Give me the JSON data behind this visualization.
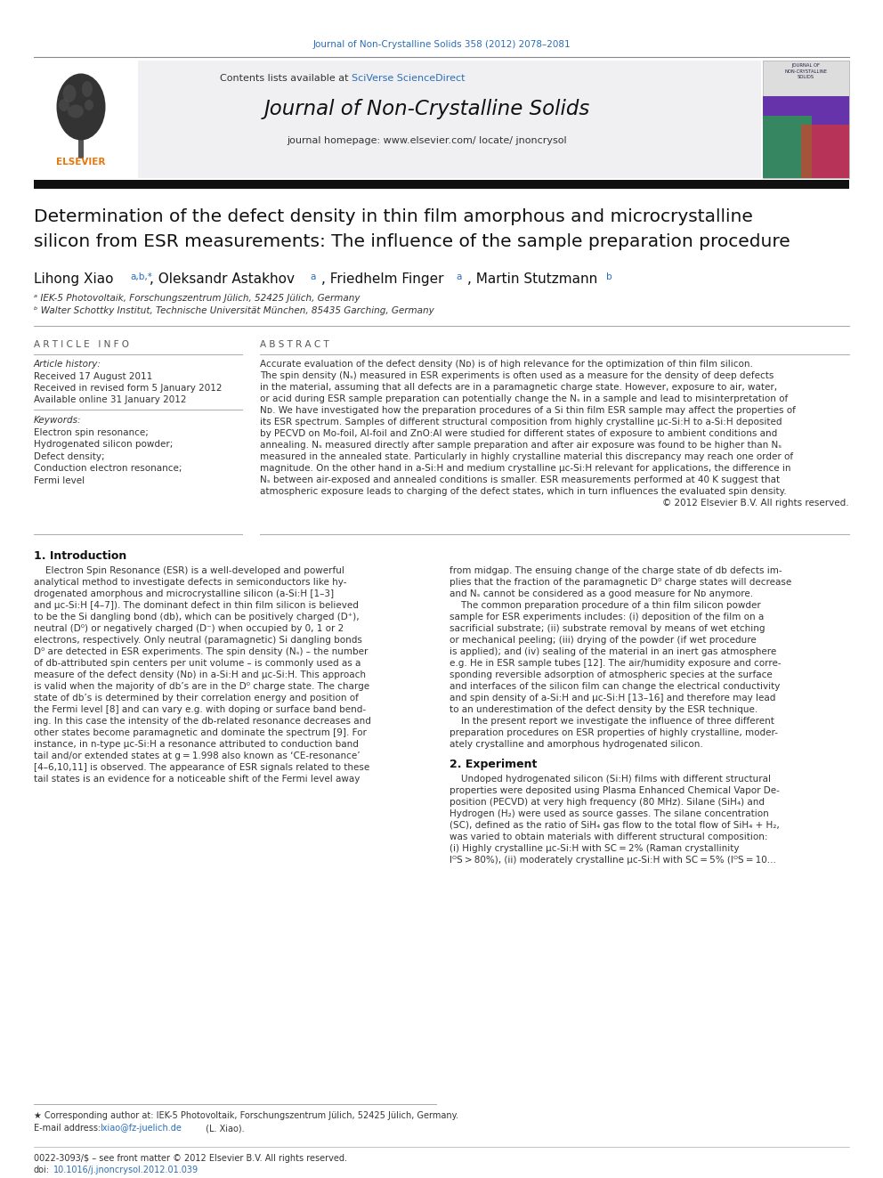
{
  "page_bg": "#ffffff",
  "top_journal_ref": "Journal of Non-Crystalline Solids 358 (2012) 2078–2081",
  "top_journal_color": "#2a6ebb",
  "journal_header_bg": "#f0f0f0",
  "journal_name": "Journal of Non-Crystalline Solids",
  "contents_text": "Contents lists available at ",
  "sciverse_text": "SciVerse ScienceDirect",
  "homepage_text": "journal homepage: www.elsevier.com/ locate/ jnoncrysol",
  "title_line1": "Determination of the defect density in thin film amorphous and microcrystalline",
  "title_line2": "silicon from ESR measurements: The influence of the sample preparation procedure",
  "affil1": "ᵃ IEK-5 Photovoltaik, Forschungszentrum Jülich, 52425 Jülich, Germany",
  "affil2": "ᵇ Walter Schottky Institut, Technische Universität München, 85435 Garching, Germany",
  "article_info_header": "A R T I C L E   I N F O",
  "article_history_header": "Article history:",
  "received1": "Received 17 August 2011",
  "received2": "Received in revised form 5 January 2012",
  "available": "Available online 31 January 2012",
  "keywords_header": "Keywords:",
  "keyword1": "Electron spin resonance;",
  "keyword2": "Hydrogenated silicon powder;",
  "keyword3": "Defect density;",
  "keyword4": "Conduction electron resonance;",
  "keyword5": "Fermi level",
  "abstract_header": "A B S T R A C T",
  "intro_header": "1. Introduction",
  "section2_header": "2. Experiment",
  "footnote_star": "★ Corresponding author at: IEK-5 Photovoltaik, Forschungszentrum Jülich, 52425 Jülich, Germany.",
  "footnote_email_prefix": "E-mail address: ",
  "footnote_email_link": "lxiao@fz-juelich.de",
  "footnote_email_suffix": " (L. Xiao).",
  "footer_issn": "0022-3093/$ – see front matter © 2012 Elsevier B.V. All rights reserved.",
  "footer_doi_prefix": "doi:",
  "footer_doi_link": "10.1016/j.jnoncrysol.2012.01.039",
  "link_color": "#2a6ebb",
  "abstract_lines": [
    "Accurate evaluation of the defect density (Nᴅ) is of high relevance for the optimization of thin film silicon.",
    "The spin density (Nₛ) measured in ESR experiments is often used as a measure for the density of deep defects",
    "in the material, assuming that all defects are in a paramagnetic charge state. However, exposure to air, water,",
    "or acid during ESR sample preparation can potentially change the Nₛ in a sample and lead to misinterpretation of",
    "Nᴅ. We have investigated how the preparation procedures of a Si thin film ESR sample may affect the properties of",
    "its ESR spectrum. Samples of different structural composition from highly crystalline μc-Si:H to a-Si:H deposited",
    "by PECVD on Mo-foil, Al-foil and ZnO:Al were studied for different states of exposure to ambient conditions and",
    "annealing. Nₛ measured directly after sample preparation and after air exposure was found to be higher than Nₛ",
    "measured in the annealed state. Particularly in highly crystalline material this discrepancy may reach one order of",
    "magnitude. On the other hand in a-Si:H and medium crystalline μc-Si:H relevant for applications, the difference in",
    "Nₛ between air-exposed and annealed conditions is smaller. ESR measurements performed at 40 K suggest that",
    "atmospheric exposure leads to charging of the defect states, which in turn influences the evaluated spin density.",
    "© 2012 Elsevier B.V. All rights reserved."
  ],
  "intro_col1_lines": [
    "    Electron Spin Resonance (ESR) is a well-developed and powerful",
    "analytical method to investigate defects in semiconductors like hy-",
    "drogenated amorphous and microcrystalline silicon (a-Si:H [1–3]",
    "and μc-Si:H [4–7]). The dominant defect in thin film silicon is believed",
    "to be the Si dangling bond (db), which can be positively charged (D⁺),",
    "neutral (D⁰) or negatively charged (D⁻) when occupied by 0, 1 or 2",
    "electrons, respectively. Only neutral (paramagnetic) Si dangling bonds",
    "D⁰ are detected in ESR experiments. The spin density (Nₛ) – the number",
    "of db-attributed spin centers per unit volume – is commonly used as a",
    "measure of the defect density (Nᴅ) in a-Si:H and μc-Si:H. This approach",
    "is valid when the majority of db’s are in the D⁰ charge state. The charge",
    "state of db’s is determined by their correlation energy and position of",
    "the Fermi level [8] and can vary e.g. with doping or surface band bend-",
    "ing. In this case the intensity of the db-related resonance decreases and",
    "other states become paramagnetic and dominate the spectrum [9]. For",
    "instance, in n-type μc-Si:H a resonance attributed to conduction band",
    "tail and/or extended states at g = 1.998 also known as ‘CE-resonance’",
    "[4–6,10,11] is observed. The appearance of ESR signals related to these",
    "tail states is an evidence for a noticeable shift of the Fermi level away"
  ],
  "intro_col2_lines": [
    "from midgap. The ensuing change of the charge state of db defects im-",
    "plies that the fraction of the paramagnetic D⁰ charge states will decrease",
    "and Nₛ cannot be considered as a good measure for Nᴅ anymore.",
    "    The common preparation procedure of a thin film silicon powder",
    "sample for ESR experiments includes: (i) deposition of the film on a",
    "sacrificial substrate; (ii) substrate removal by means of wet etching",
    "or mechanical peeling; (iii) drying of the powder (if wet procedure",
    "is applied); and (iv) sealing of the material in an inert gas atmosphere",
    "e.g. He in ESR sample tubes [12]. The air/humidity exposure and corre-",
    "sponding reversible adsorption of atmospheric species at the surface",
    "and interfaces of the silicon film can change the electrical conductivity",
    "and spin density of a-Si:H and μc-Si:H [13–16] and therefore may lead",
    "to an underestimation of the defect density by the ESR technique.",
    "    In the present report we investigate the influence of three different",
    "preparation procedures on ESR properties of highly crystalline, moder-",
    "ately crystalline and amorphous hydrogenated silicon."
  ],
  "sec2_lines": [
    "    Undoped hydrogenated silicon (Si:H) films with different structural",
    "properties were deposited using Plasma Enhanced Chemical Vapor De-",
    "position (PECVD) at very high frequency (80 MHz). Silane (SiH₄) and",
    "Hydrogen (H₂) were used as source gasses. The silane concentration",
    "(SC), defined as the ratio of SiH₄ gas flow to the total flow of SiH₄ + H₂,",
    "was varied to obtain materials with different structural composition:",
    "(i) Highly crystalline μc-Si:H with SC = 2% (Raman crystallinity",
    "IᴼS > 80%), (ii) moderately crystalline μc-Si:H with SC = 5% (IᴼS = 10..."
  ]
}
